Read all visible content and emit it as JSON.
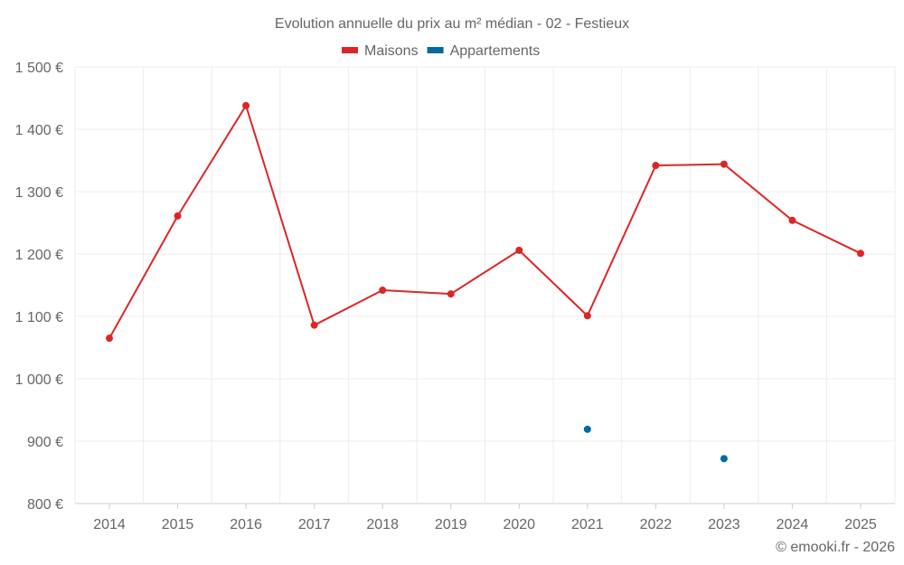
{
  "chart_data": {
    "type": "line",
    "title": "Evolution annuelle du prix au m² médian - 02 - Festieux",
    "categories": [
      "2014",
      "2015",
      "2016",
      "2017",
      "2018",
      "2019",
      "2020",
      "2021",
      "2022",
      "2023",
      "2024",
      "2025"
    ],
    "series": [
      {
        "name": "Maisons",
        "color": "#dc2626",
        "values": [
          1065,
          1261,
          1438,
          1086,
          1142,
          1136,
          1206,
          1101,
          1342,
          1344,
          1254,
          1201
        ]
      },
      {
        "name": "Appartements",
        "color": "#0369a1",
        "values": [
          null,
          null,
          null,
          null,
          null,
          null,
          null,
          919,
          null,
          872,
          null,
          null
        ]
      }
    ],
    "ylim": [
      800,
      1500
    ],
    "yticks": [
      800,
      900,
      1000,
      1100,
      1200,
      1300,
      1400,
      1500
    ],
    "ytick_labels": [
      "800 €",
      "900 €",
      "1 000 €",
      "1 100 €",
      "1 200 €",
      "1 300 €",
      "1 400 €",
      "1 500 €"
    ],
    "grid": true,
    "legend": "top-center",
    "credit": "© emooki.fr - 2026"
  }
}
